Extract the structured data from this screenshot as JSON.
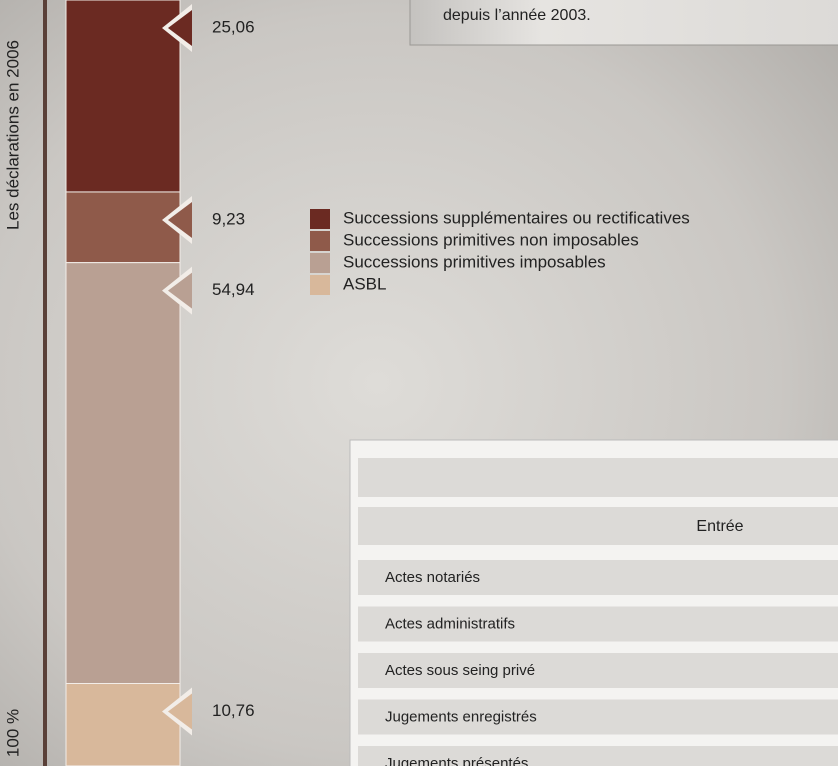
{
  "chart_data": {
    "type": "stacked_bar",
    "y_label": "Les déclarations en 2006",
    "axis_label": "100 %",
    "ylim": [
      0,
      100
    ],
    "series": [
      {
        "name": "Successions supplémentaires ou rectificatives",
        "color": "#6b2a22",
        "values": [
          25.06
        ],
        "value_labels": [
          "25,06"
        ]
      },
      {
        "name": "Successions primitives non imposables",
        "color": "#8f5a4a",
        "values": [
          9.23
        ],
        "value_labels": [
          "9,23"
        ]
      },
      {
        "name": "Successions primitives imposables",
        "color": "#b9a093",
        "values": [
          54.94
        ],
        "value_labels": [
          "54,94"
        ]
      },
      {
        "name": "ASBL",
        "color": "#d8b89b",
        "values": [
          10.76
        ],
        "value_labels": [
          "10,76"
        ]
      }
    ]
  },
  "note": "depuis l’année 2003.",
  "table": {
    "header": "Entrée",
    "rows": [
      "Actes notariés",
      "Actes administratifs",
      "Actes sous seing privé",
      "Jugements enregistrés",
      "Jugements présentés"
    ]
  }
}
